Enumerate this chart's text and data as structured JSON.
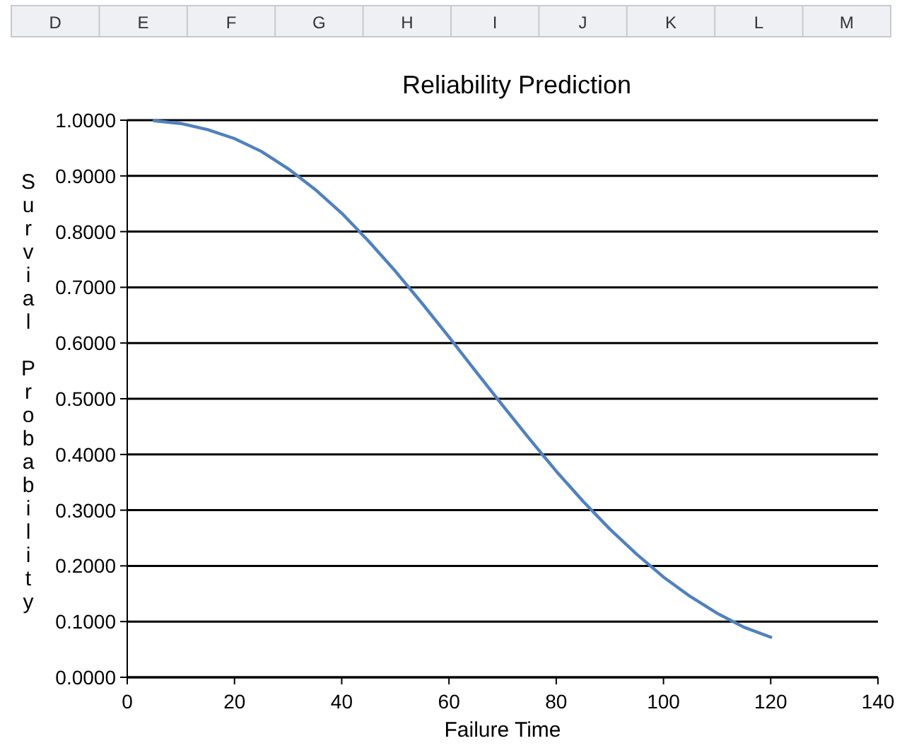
{
  "chart_data": {
    "type": "line",
    "title": "Reliability Prediction",
    "xlabel": "Failure Time",
    "ylabel": "Survial Probability",
    "annotations": [
      "D",
      "E",
      "F",
      "G",
      "H",
      "I",
      "J",
      "K",
      "L",
      "M"
    ],
    "x": [
      5,
      10,
      15,
      20,
      25,
      30,
      35,
      40,
      45,
      50,
      55,
      60,
      65,
      70,
      75,
      80,
      85,
      90,
      95,
      100,
      105,
      110,
      115,
      120
    ],
    "series": [
      {
        "color": "#4f81bd",
        "values": [
          0.999,
          0.994,
          0.983,
          0.967,
          0.944,
          0.913,
          0.876,
          0.833,
          0.783,
          0.729,
          0.671,
          0.611,
          0.549,
          0.488,
          0.428,
          0.37,
          0.316,
          0.266,
          0.221,
          0.18,
          0.145,
          0.115,
          0.09,
          0.072
        ]
      }
    ],
    "xlim": [
      0,
      140
    ],
    "xticks": [
      0,
      20,
      40,
      60,
      80,
      100,
      120,
      140
    ],
    "ylim": [
      0,
      1
    ],
    "yticks": [
      {
        "value": 0,
        "label": "0.0000"
      },
      {
        "value": 0.1,
        "label": "0.1000"
      },
      {
        "value": 0.2,
        "label": "0.2000"
      },
      {
        "value": 0.3,
        "label": "0.3000"
      },
      {
        "value": 0.4,
        "label": "0.4000"
      },
      {
        "value": 0.5,
        "label": "0.5000"
      },
      {
        "value": 0.6,
        "label": "0.6000"
      },
      {
        "value": 0.7,
        "label": "0.7000"
      },
      {
        "value": 0.8,
        "label": "0.8000"
      },
      {
        "value": 0.9,
        "label": "0.9000"
      },
      {
        "value": 1,
        "label": "1.0000"
      }
    ],
    "grid": "y",
    "marker": "none",
    "line_style": "solid"
  }
}
